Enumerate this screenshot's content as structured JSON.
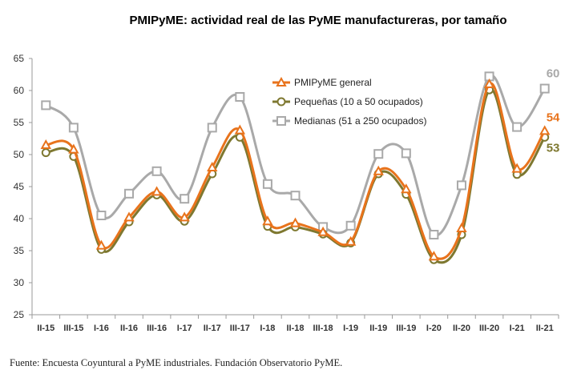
{
  "chart_data": {
    "type": "line",
    "title": "PMIPyME: actividad real de las PyME manufactureras, por tamaño",
    "xlabel": "",
    "ylabel": "",
    "ylim": [
      25,
      65
    ],
    "yticks": [
      25,
      30,
      35,
      40,
      45,
      50,
      55,
      60,
      65
    ],
    "grid": false,
    "legend_position": "top-center",
    "categories": [
      "II-15",
      "III-15",
      "I-16",
      "II-16",
      "III-16",
      "I-17",
      "II-17",
      "III-17",
      "I-18",
      "II-18",
      "III-18",
      "I-19",
      "II-19",
      "III-19",
      "I-20",
      "II-20",
      "III-20",
      "I-21",
      "II-21"
    ],
    "series": [
      {
        "name": "PMIPyME general",
        "color": "#E8731C",
        "marker": "triangle",
        "values": [
          51.5,
          50.8,
          35.8,
          40.2,
          44.2,
          40.2,
          48.0,
          53.8,
          39.6,
          39.3,
          37.9,
          36.4,
          47.4,
          44.6,
          34.1,
          38.5,
          61.0,
          47.8,
          53.7
        ]
      },
      {
        "name": "Pequeñas (10 a 50 ocupados)",
        "color": "#7E7830",
        "marker": "circle",
        "values": [
          50.3,
          49.7,
          35.2,
          39.5,
          43.7,
          39.6,
          47.0,
          52.7,
          38.8,
          38.7,
          37.6,
          36.2,
          47.0,
          43.8,
          33.6,
          37.5,
          60.1,
          46.9,
          52.7
        ]
      },
      {
        "name": "Medianas (51 a 250 ocupados)",
        "color": "#A9A9A9",
        "marker": "square",
        "values": [
          57.7,
          54.2,
          40.5,
          43.9,
          47.4,
          43.1,
          54.2,
          59.0,
          45.4,
          43.6,
          38.7,
          38.9,
          50.1,
          50.2,
          37.5,
          45.2,
          62.2,
          54.3,
          60.3
        ]
      }
    ],
    "end_labels": [
      {
        "series": "Medianas (51 a 250 ocupados)",
        "text": "60",
        "color": "#A9A9A9"
      },
      {
        "series": "PMIPyME general",
        "text": "54",
        "color": "#E8731C"
      },
      {
        "series": "Pequeñas (10 a 50 ocupados)",
        "text": "53",
        "color": "#7E7830"
      }
    ],
    "source": "Fuente: Encuesta Coyuntural a PyME industriales. Fundación Observatorio PyME."
  }
}
